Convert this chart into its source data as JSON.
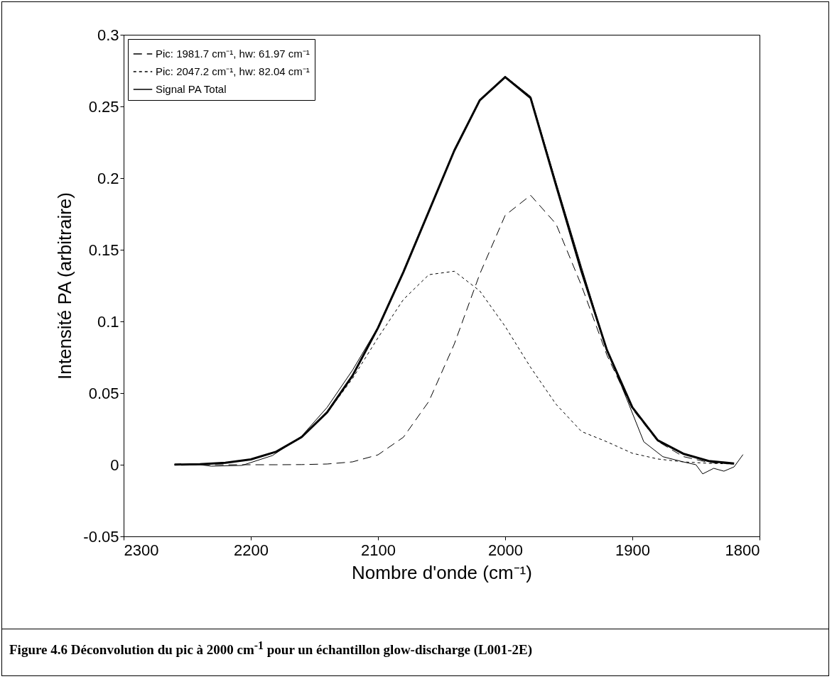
{
  "chart_data": {
    "type": "line",
    "xlabel": "Nombre d'onde (cm⁻¹)",
    "ylabel": "Intensité PA (arbitraire)",
    "xlim": [
      2300,
      1800
    ],
    "xticks": [
      2300,
      2200,
      2100,
      2000,
      1900,
      1800
    ],
    "ylim": [
      -0.05,
      0.3
    ],
    "yticks": [
      -0.05,
      0,
      0.05,
      0.1,
      0.15,
      0.2,
      0.25,
      0.3
    ],
    "grid": false,
    "legend": "top left",
    "marker": "none",
    "annotations": [
      "Figure 4.6 Déconvolution du pic à 2000 cm$^{-1}$ pour un échantillon glow-discharge (L001-2E)"
    ],
    "series": [
      {
        "color": "#000000",
        "line_style": "solid",
        "x": [
          2260,
          2240,
          2231,
          2207,
          2183,
          2160,
          2140,
          2120,
          2100,
          2080,
          2060,
          2040,
          2020,
          2000,
          1980,
          1960,
          1940,
          1920,
          1904,
          1891,
          1876,
          1860,
          1850,
          1844.7,
          1836,
          1828,
          1820,
          1813
        ],
        "values": [
          0,
          0,
          -0.001,
          -0.0005,
          0.0064,
          0.02,
          0.04,
          0.066,
          0.096,
          0.135,
          0.177,
          0.219,
          0.254,
          0.271,
          0.257,
          0.197,
          0.138,
          0.08,
          0.045,
          0.016,
          0.0056,
          0.002,
          0,
          -0.0064,
          -0.0025,
          -0.0045,
          -0.0015,
          0.0071
        ]
      },
      {
        "name": "Pic: 1981.7 cm⁻¹, hw: 61.97 cm⁻¹",
        "color": "#000000",
        "line_style": "dashed",
        "x": [
          2260,
          2240,
          2220,
          2200,
          2180,
          2160,
          2140,
          2120,
          2100,
          2080,
          2060,
          2040,
          2020,
          2000,
          1980,
          1960,
          1940,
          1920,
          1900,
          1880,
          1860,
          1840,
          1820
        ],
        "values": [
          0,
          0,
          0,
          0,
          0,
          0.0001,
          0.0005,
          0.002,
          0.0069,
          0.0192,
          0.0442,
          0.0842,
          0.133,
          0.174,
          0.188,
          0.168,
          0.125,
          0.0765,
          0.0389,
          0.0163,
          0.0057,
          0.0016,
          0.0004
        ]
      },
      {
        "name": "Pic: 2047.2 cm⁻¹, hw: 82.04 cm⁻¹",
        "color": "#000000",
        "line_style": "dotted",
        "x": [
          2260,
          2240,
          2220,
          2200,
          2180,
          2160,
          2140,
          2120,
          2100,
          2080,
          2060,
          2040,
          2020,
          2000,
          1980,
          1960,
          1940,
          1920,
          1900,
          1880,
          1860,
          1840,
          1820
        ],
        "values": [
          0.0001,
          0.0004,
          0.0014,
          0.0037,
          0.009,
          0.0192,
          0.0361,
          0.0602,
          0.0886,
          0.1153,
          0.1326,
          0.135,
          0.1213,
          0.0965,
          0.0679,
          0.0422,
          0.0232,
          0.016,
          0.008,
          0.004,
          0.002,
          0.001,
          0.0005
        ]
      },
      {
        "name": "Signal PA Total",
        "color": "#000000",
        "line_style": "solid",
        "x": [
          2260,
          2240,
          2220,
          2200,
          2180,
          2160,
          2140,
          2120,
          2100,
          2080,
          2060,
          2040,
          2020,
          2000,
          1980,
          1960,
          1940,
          1920,
          1900,
          1880,
          1860,
          1840,
          1820
        ],
        "values": [
          0.0001,
          0.0004,
          0.0014,
          0.0037,
          0.0091,
          0.0193,
          0.0366,
          0.0622,
          0.0955,
          0.1345,
          0.1768,
          0.2192,
          0.2543,
          0.2705,
          0.2559,
          0.195,
          0.135,
          0.08,
          0.04,
          0.017,
          0.0077,
          0.0026,
          0.0009
        ]
      }
    ]
  }
}
